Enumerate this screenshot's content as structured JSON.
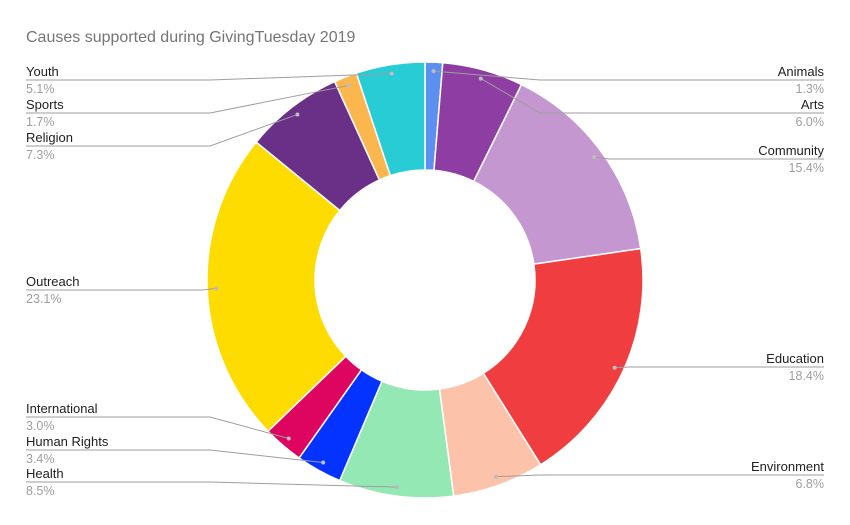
{
  "chart_data": {
    "type": "pie",
    "donut": true,
    "title": "Causes supported during GivingTuesday 2019",
    "slices": [
      {
        "label": "Animals",
        "value": 1.3,
        "display": "1.3%",
        "color": "#5b8ff0"
      },
      {
        "label": "Arts",
        "value": 6.0,
        "display": "6.0%",
        "color": "#8e3ea3"
      },
      {
        "label": "Community",
        "value": 15.4,
        "display": "15.4%",
        "color": "#c597d1"
      },
      {
        "label": "Education",
        "value": 18.4,
        "display": "18.4%",
        "color": "#f03e40"
      },
      {
        "label": "Environment",
        "value": 6.8,
        "display": "6.8%",
        "color": "#fcc3aa"
      },
      {
        "label": "Health",
        "value": 8.5,
        "display": "8.5%",
        "color": "#93e8b3"
      },
      {
        "label": "Human Rights",
        "value": 3.4,
        "display": "3.4%",
        "color": "#0433ff"
      },
      {
        "label": "International",
        "value": 3.0,
        "display": "3.0%",
        "color": "#dd0560"
      },
      {
        "label": "Outreach",
        "value": 23.1,
        "display": "23.1%",
        "color": "#ffdc00"
      },
      {
        "label": "Religion",
        "value": 7.3,
        "display": "7.3%",
        "color": "#6a2f86"
      },
      {
        "label": "Sports",
        "value": 1.7,
        "display": "1.7%",
        "color": "#fbb74d"
      },
      {
        "label": "Youth",
        "value": 5.1,
        "display": "5.1%",
        "color": "#27ccd5"
      }
    ],
    "legend": "none"
  }
}
